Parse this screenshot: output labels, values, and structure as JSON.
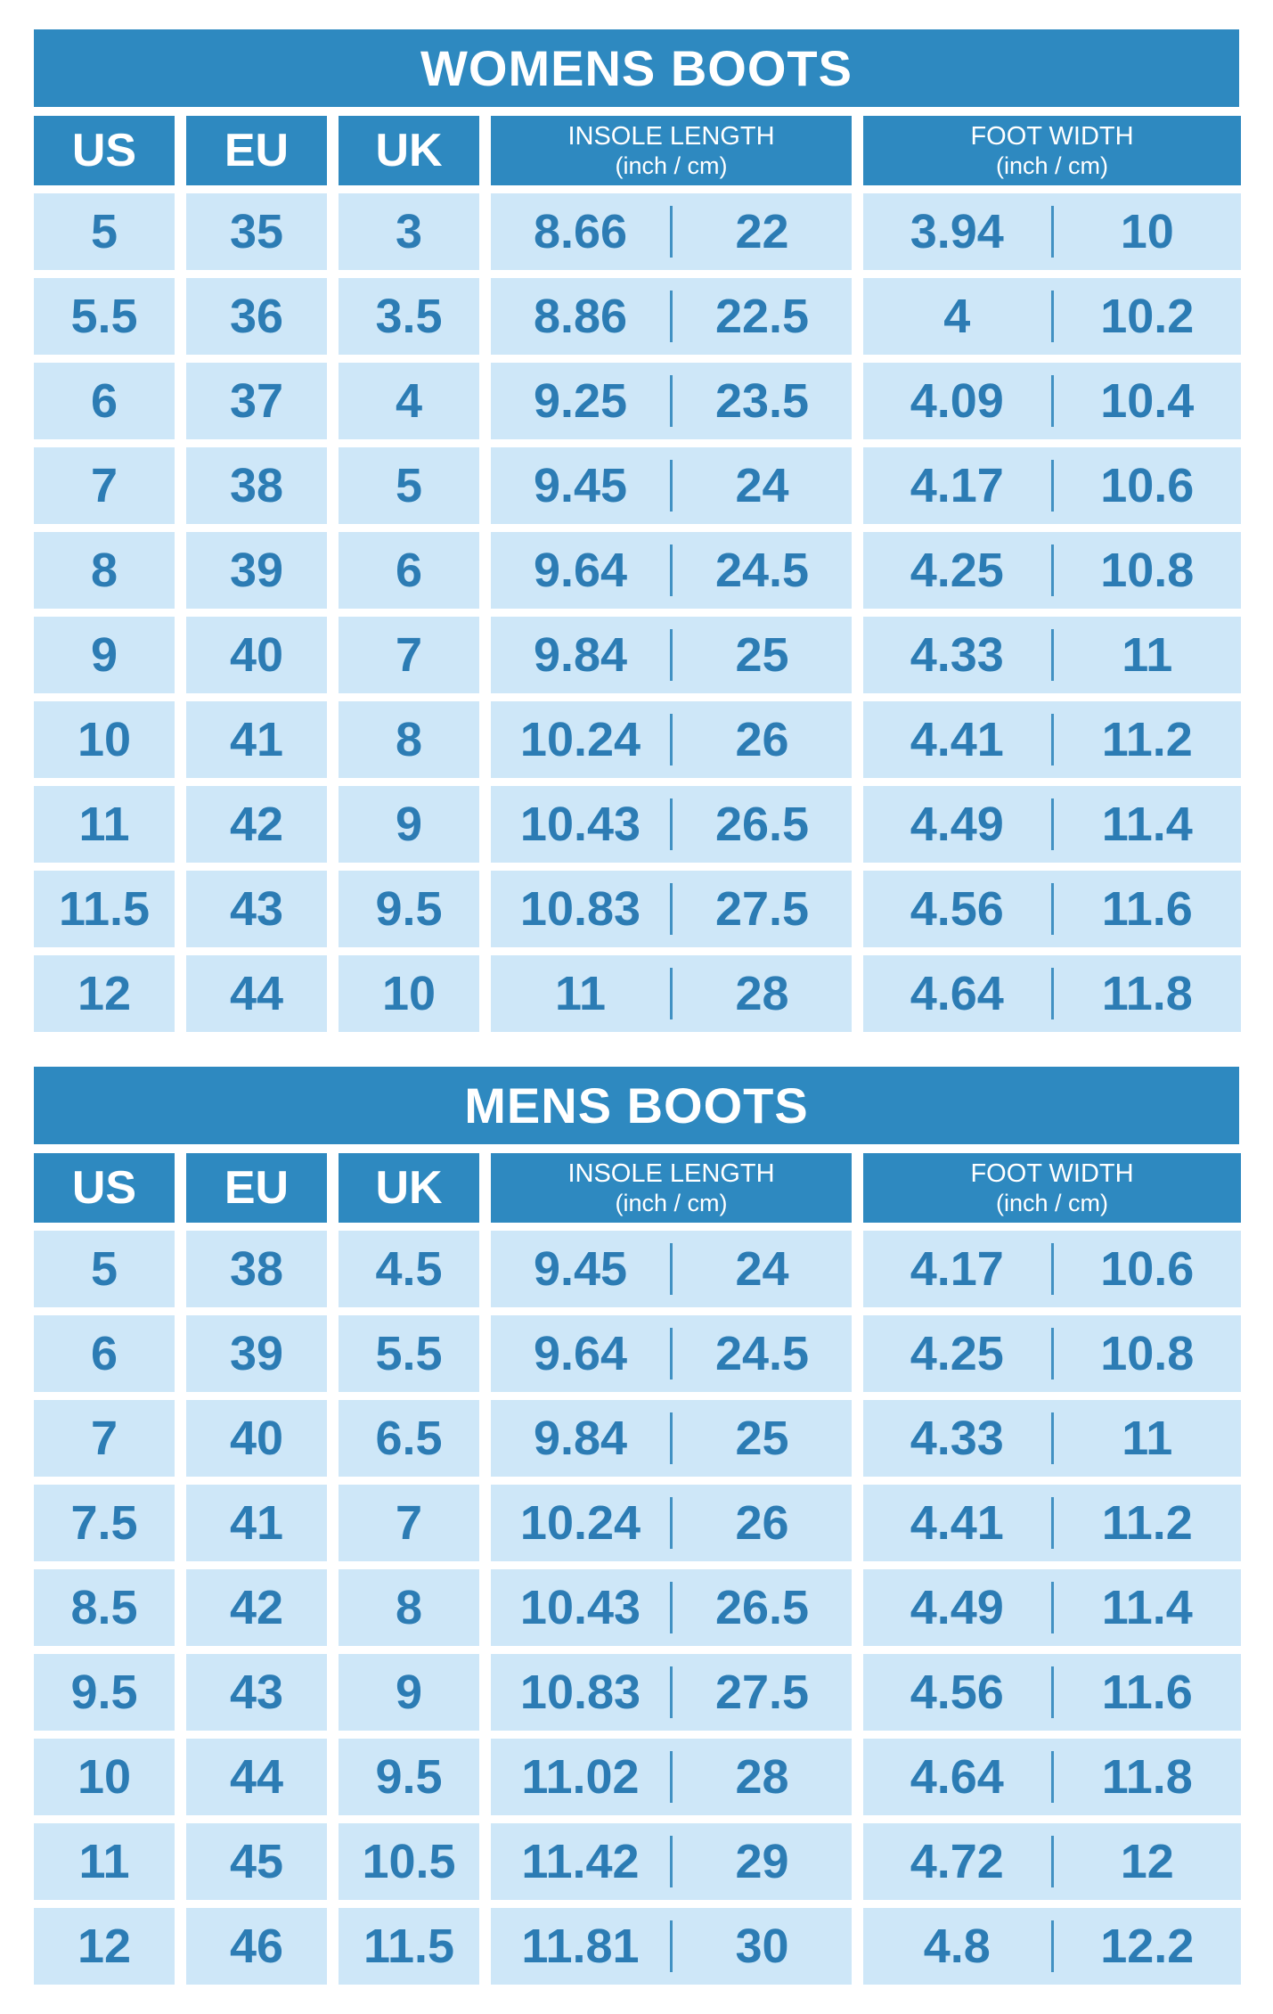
{
  "colors": {
    "bar_blue": "#2e89c0",
    "cell_light_blue": "#cee7f8",
    "number_text_blue": "#2c7cb4",
    "divider_blue": "#4191c3",
    "gutter_white": "#ffffff"
  },
  "column_headers": {
    "us": "US",
    "eu": "EU",
    "uk": "UK",
    "insole_title": "INSOLE LENGTH",
    "insole_unit": "(inch / cm)",
    "foot_title": "FOOT WIDTH",
    "foot_unit": "(inch / cm)"
  },
  "tables": [
    {
      "title": "WOMENS BOOTS",
      "rows": [
        {
          "us": "5",
          "eu": "35",
          "uk": "3",
          "insole_inch": "8.66",
          "insole_cm": "22",
          "width_inch": "3.94",
          "width_cm": "10"
        },
        {
          "us": "5.5",
          "eu": "36",
          "uk": "3.5",
          "insole_inch": "8.86",
          "insole_cm": "22.5",
          "width_inch": "4",
          "width_cm": "10.2"
        },
        {
          "us": "6",
          "eu": "37",
          "uk": "4",
          "insole_inch": "9.25",
          "insole_cm": "23.5",
          "width_inch": "4.09",
          "width_cm": "10.4"
        },
        {
          "us": "7",
          "eu": "38",
          "uk": "5",
          "insole_inch": "9.45",
          "insole_cm": "24",
          "width_inch": "4.17",
          "width_cm": "10.6"
        },
        {
          "us": "8",
          "eu": "39",
          "uk": "6",
          "insole_inch": "9.64",
          "insole_cm": "24.5",
          "width_inch": "4.25",
          "width_cm": "10.8"
        },
        {
          "us": "9",
          "eu": "40",
          "uk": "7",
          "insole_inch": "9.84",
          "insole_cm": "25",
          "width_inch": "4.33",
          "width_cm": "11"
        },
        {
          "us": "10",
          "eu": "41",
          "uk": "8",
          "insole_inch": "10.24",
          "insole_cm": "26",
          "width_inch": "4.41",
          "width_cm": "11.2"
        },
        {
          "us": "11",
          "eu": "42",
          "uk": "9",
          "insole_inch": "10.43",
          "insole_cm": "26.5",
          "width_inch": "4.49",
          "width_cm": "11.4"
        },
        {
          "us": "11.5",
          "eu": "43",
          "uk": "9.5",
          "insole_inch": "10.83",
          "insole_cm": "27.5",
          "width_inch": "4.56",
          "width_cm": "11.6"
        },
        {
          "us": "12",
          "eu": "44",
          "uk": "10",
          "insole_inch": "11",
          "insole_cm": "28",
          "width_inch": "4.64",
          "width_cm": "11.8"
        }
      ]
    },
    {
      "title": "MENS BOOTS",
      "rows": [
        {
          "us": "5",
          "eu": "38",
          "uk": "4.5",
          "insole_inch": "9.45",
          "insole_cm": "24",
          "width_inch": "4.17",
          "width_cm": "10.6"
        },
        {
          "us": "6",
          "eu": "39",
          "uk": "5.5",
          "insole_inch": "9.64",
          "insole_cm": "24.5",
          "width_inch": "4.25",
          "width_cm": "10.8"
        },
        {
          "us": "7",
          "eu": "40",
          "uk": "6.5",
          "insole_inch": "9.84",
          "insole_cm": "25",
          "width_inch": "4.33",
          "width_cm": "11"
        },
        {
          "us": "7.5",
          "eu": "41",
          "uk": "7",
          "insole_inch": "10.24",
          "insole_cm": "26",
          "width_inch": "4.41",
          "width_cm": "11.2"
        },
        {
          "us": "8.5",
          "eu": "42",
          "uk": "8",
          "insole_inch": "10.43",
          "insole_cm": "26.5",
          "width_inch": "4.49",
          "width_cm": "11.4"
        },
        {
          "us": "9.5",
          "eu": "43",
          "uk": "9",
          "insole_inch": "10.83",
          "insole_cm": "27.5",
          "width_inch": "4.56",
          "width_cm": "11.6"
        },
        {
          "us": "10",
          "eu": "44",
          "uk": "9.5",
          "insole_inch": "11.02",
          "insole_cm": "28",
          "width_inch": "4.64",
          "width_cm": "11.8"
        },
        {
          "us": "11",
          "eu": "45",
          "uk": "10.5",
          "insole_inch": "11.42",
          "insole_cm": "29",
          "width_inch": "4.72",
          "width_cm": "12"
        },
        {
          "us": "12",
          "eu": "46",
          "uk": "11.5",
          "insole_inch": "11.81",
          "insole_cm": "30",
          "width_inch": "4.8",
          "width_cm": "12.2"
        }
      ]
    }
  ]
}
